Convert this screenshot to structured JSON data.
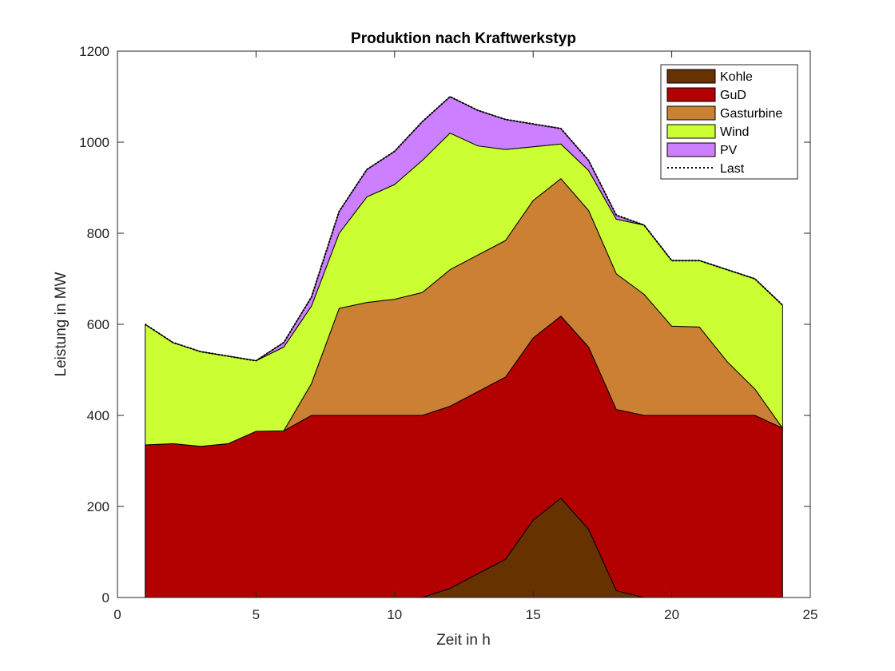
{
  "chart_data": {
    "type": "area",
    "stacked": true,
    "title": "Produktion nach Kraftwerkstyp",
    "xlabel": "Zeit in h",
    "ylabel": "Leistung in MW",
    "xlim": [
      0,
      25
    ],
    "ylim": [
      0,
      1200
    ],
    "xticks": [
      0,
      5,
      10,
      15,
      20,
      25
    ],
    "yticks": [
      0,
      200,
      400,
      600,
      800,
      1000,
      1200
    ],
    "legend_position": "top-right",
    "grid": false,
    "x": [
      1,
      2,
      3,
      4,
      5,
      6,
      7,
      8,
      9,
      10,
      11,
      12,
      13,
      14,
      15,
      16,
      17,
      18,
      19,
      20,
      21,
      22,
      23,
      24
    ],
    "series": [
      {
        "name": "Kohle",
        "color": "#663300",
        "values": [
          0,
          0,
          0,
          0,
          0,
          0,
          0,
          0,
          0,
          0,
          0,
          20,
          52,
          84,
          170,
          218,
          150,
          15,
          0,
          0,
          0,
          0,
          0,
          0
        ]
      },
      {
        "name": "GuD",
        "color": "#b30000",
        "values": [
          335,
          338,
          332,
          338,
          365,
          366,
          400,
          400,
          400,
          400,
          400,
          400,
          400,
          400,
          400,
          400,
          400,
          398,
          400,
          400,
          400,
          400,
          400,
          372
        ]
      },
      {
        "name": "Gasturbine",
        "color": "#cc8033",
        "values": [
          0,
          0,
          0,
          0,
          0,
          0,
          70,
          235,
          248,
          255,
          270,
          300,
          300,
          300,
          302,
          302,
          300,
          298,
          266,
          196,
          194,
          118,
          58,
          0
        ]
      },
      {
        "name": "Wind",
        "color": "#ccff33",
        "values": [
          265,
          222,
          208,
          192,
          155,
          184,
          170,
          165,
          232,
          252,
          290,
          300,
          240,
          200,
          118,
          76,
          88,
          120,
          152,
          144,
          146,
          202,
          242,
          270
        ]
      },
      {
        "name": "PV",
        "color": "#cc80ff",
        "values": [
          0,
          0,
          0,
          0,
          0,
          10,
          20,
          48,
          60,
          73,
          85,
          80,
          78,
          66,
          50,
          34,
          22,
          8,
          0,
          0,
          0,
          0,
          0,
          0
        ]
      }
    ],
    "last": {
      "name": "Last",
      "values": [
        600,
        560,
        540,
        530,
        520,
        560,
        660,
        848,
        940,
        980,
        1045,
        1100,
        1070,
        1050,
        1040,
        1030,
        960,
        840,
        818,
        740,
        740,
        720,
        700,
        642
      ]
    }
  }
}
